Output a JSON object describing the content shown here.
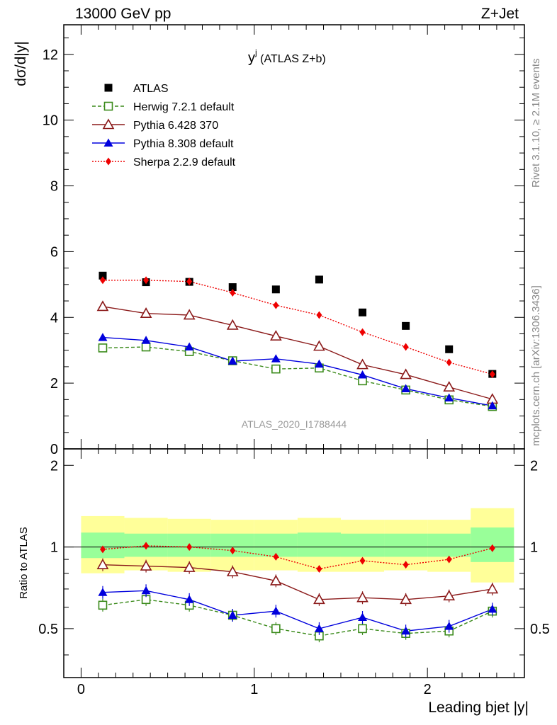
{
  "header": {
    "left": "13000 GeV pp",
    "right": "Z+Jet"
  },
  "side_text": {
    "rivet": "Rivet 3.1.10, ≥ 2.1M events",
    "mcplots": "mcplots.cern.ch [arXiv:1306.3436]"
  },
  "watermark": "ATLAS_2020_I1788444",
  "plot_title_main": "y",
  "plot_title_sup": "j",
  "plot_title_rest": " (ATLAS Z+b)",
  "chart_data": [
    {
      "type": "line",
      "title": "yʲ (ATLAS Z+b)",
      "xlabel": "Leading bjet |y|",
      "ylabel": "dσ/d|y|",
      "xlim": [
        -0.1,
        2.56
      ],
      "ylim": [
        0,
        12.9
      ],
      "yticks": [
        0,
        2,
        4,
        6,
        8,
        10,
        12
      ],
      "legend_position": "top-left",
      "x": [
        0.125,
        0.375,
        0.625,
        0.875,
        1.125,
        1.375,
        1.625,
        1.875,
        2.125,
        2.375
      ],
      "series": [
        {
          "name": "ATLAS",
          "color": "#000000",
          "marker": "square",
          "values": [
            5.27,
            5.07,
            5.08,
            4.92,
            4.85,
            5.15,
            4.15,
            3.74,
            3.03,
            2.28
          ]
        },
        {
          "name": "Herwig 7.2.1 default",
          "color": "#3a8a1a",
          "marker": "open-square",
          "values": [
            3.07,
            3.1,
            2.96,
            2.68,
            2.43,
            2.46,
            2.07,
            1.79,
            1.49,
            1.29
          ]
        },
        {
          "name": "Pythia 6.428 370",
          "color": "#8b1a1a",
          "marker": "open-triangle",
          "values": [
            4.33,
            4.12,
            4.07,
            3.76,
            3.43,
            3.12,
            2.56,
            2.26,
            1.88,
            1.51
          ]
        },
        {
          "name": "Pythia 8.308 default",
          "color": "#0000dd",
          "marker": "triangle",
          "values": [
            3.39,
            3.3,
            3.1,
            2.67,
            2.74,
            2.58,
            2.25,
            1.83,
            1.55,
            1.31
          ]
        },
        {
          "name": "Sherpa 2.2.9 default",
          "color": "#ee0000",
          "marker": "diamond",
          "values": [
            5.13,
            5.13,
            5.09,
            4.75,
            4.37,
            4.07,
            3.55,
            3.1,
            2.63,
            2.27
          ]
        }
      ]
    },
    {
      "type": "line",
      "xlabel": "Leading bjet |y|",
      "ylabel": "Ratio to ATLAS",
      "xlim": [
        -0.1,
        2.56
      ],
      "ylim": [
        0.33,
        2.3
      ],
      "yticks": [
        0.5,
        1,
        2
      ],
      "xticks": [
        0,
        1,
        2
      ],
      "bins": [
        [
          0.0,
          0.25
        ],
        [
          0.25,
          0.5
        ],
        [
          0.5,
          0.75
        ],
        [
          0.75,
          1.0
        ],
        [
          1.0,
          1.25
        ],
        [
          1.25,
          1.5
        ],
        [
          1.5,
          1.75
        ],
        [
          1.75,
          2.0
        ],
        [
          2.0,
          2.25
        ],
        [
          2.25,
          2.5
        ]
      ],
      "band_outer": [
        [
          0.8,
          1.3
        ],
        [
          0.82,
          1.28
        ],
        [
          0.81,
          1.27
        ],
        [
          0.82,
          1.26
        ],
        [
          0.82,
          1.26
        ],
        [
          0.81,
          1.28
        ],
        [
          0.81,
          1.26
        ],
        [
          0.82,
          1.26
        ],
        [
          0.81,
          1.26
        ],
        [
          0.74,
          1.39
        ]
      ],
      "band_inner": [
        [
          0.91,
          1.13
        ],
        [
          0.92,
          1.12
        ],
        [
          0.92,
          1.12
        ],
        [
          0.92,
          1.12
        ],
        [
          0.92,
          1.12
        ],
        [
          0.92,
          1.13
        ],
        [
          0.92,
          1.12
        ],
        [
          0.92,
          1.12
        ],
        [
          0.92,
          1.12
        ],
        [
          0.88,
          1.18
        ]
      ],
      "x": [
        0.125,
        0.375,
        0.625,
        0.875,
        1.125,
        1.375,
        1.625,
        1.875,
        2.125,
        2.375
      ],
      "series": [
        {
          "name": "Herwig 7.2.1 default",
          "color": "#3a8a1a",
          "marker": "open-square",
          "values": [
            0.61,
            0.64,
            0.61,
            0.56,
            0.5,
            0.47,
            0.5,
            0.48,
            0.49,
            0.58
          ]
        },
        {
          "name": "Pythia 6.428 370",
          "color": "#8b1a1a",
          "marker": "open-triangle",
          "values": [
            0.86,
            0.85,
            0.84,
            0.81,
            0.75,
            0.64,
            0.65,
            0.64,
            0.66,
            0.7
          ]
        },
        {
          "name": "Pythia 8.308 default",
          "color": "#0000dd",
          "marker": "triangle",
          "values": [
            0.68,
            0.69,
            0.64,
            0.56,
            0.58,
            0.5,
            0.55,
            0.49,
            0.51,
            0.59
          ]
        },
        {
          "name": "Sherpa 2.2.9 default",
          "color": "#ee0000",
          "marker": "diamond",
          "values": [
            0.98,
            1.01,
            1.0,
            0.97,
            0.92,
            0.83,
            0.89,
            0.86,
            0.9,
            0.99
          ]
        }
      ]
    }
  ]
}
